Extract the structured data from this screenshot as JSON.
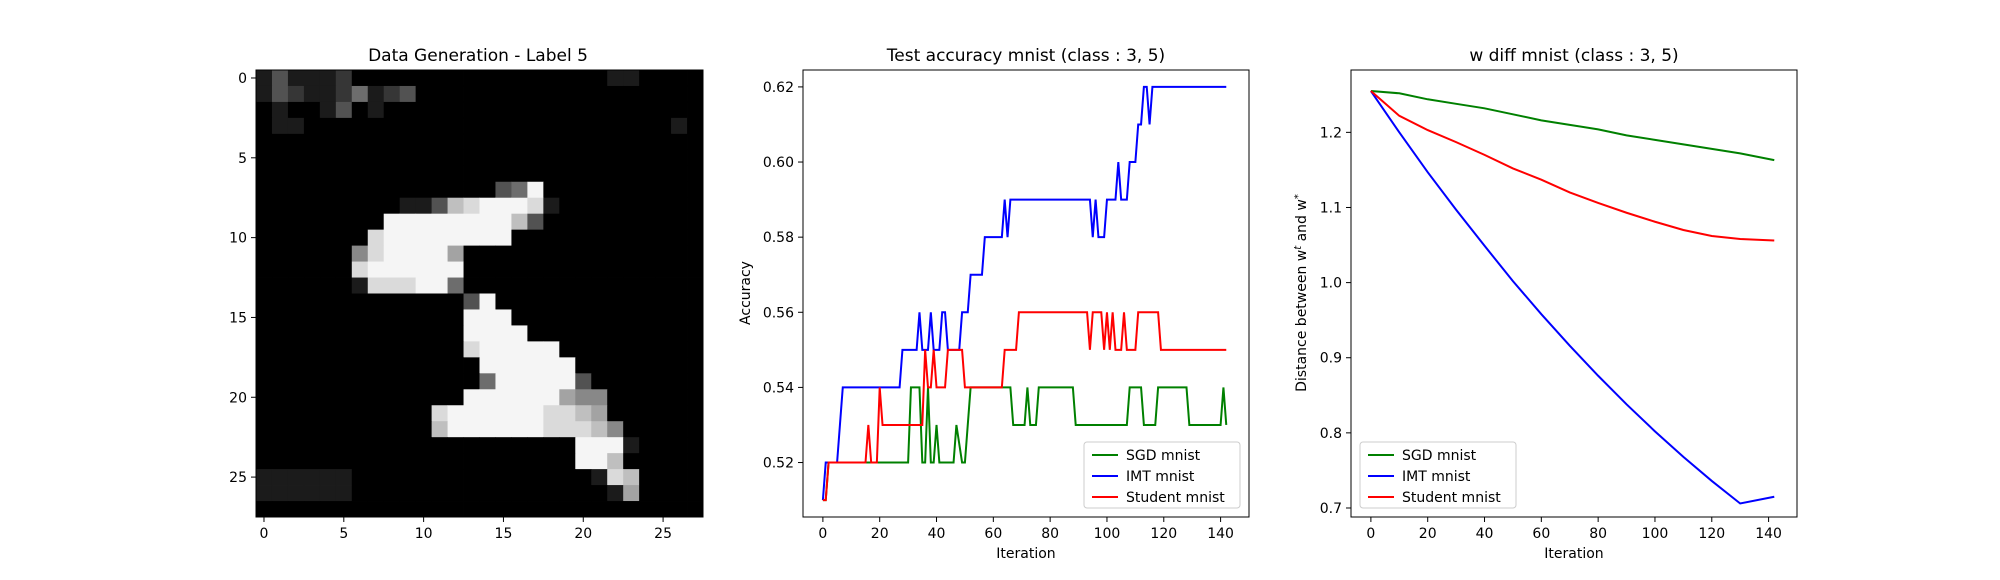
{
  "chart_data": [
    {
      "type": "heatmap",
      "title": "Data Generation - Label 5",
      "colormap": "gray",
      "xlim": [
        -0.5,
        27.5
      ],
      "ylim": [
        27.5,
        -0.5
      ],
      "xticks": [
        "0",
        "5",
        "10",
        "15",
        "20",
        "25"
      ],
      "yticks": [
        "0",
        "5",
        "10",
        "15",
        "20",
        "25"
      ],
      "rows": [
        "1311120000000000000000110000",
        "1321124123000000000000000000",
        "0100130100000000000000000000",
        "0110000000000000000000000010",
        "0000000000000000000000000000",
        "0000000000000000000000000000",
        "0000000000000000000000000000",
        "0000000000000003490000000000",
        "0000000001137899981000000000",
        "0000000099999999730000000000",
        "0000000899999999000000000000",
        "0000005899996000000000000000",
        "0000008999999000000000000000",
        "0000001888994000000000000000",
        "0000000000000390000000000000",
        "0000000000000999000000000000",
        "0000000000000999900000000000",
        "0000000000000899999000000000",
        "0000000000000099999900000000",
        "0000000000000049999930000000",
        "0000000000000999999655000000",
        "0000000000089999998876000000",
        "0000000000079999998887500000",
        "0000000000000000000099910000",
        "0000000000000000000099700000",
        "1111110000000000000001870000",
        "1111110000000000000000160000",
        "0000000000000000000000000000"
      ]
    },
    {
      "type": "line",
      "title": "Test accuracy mnist (class : 3, 5)",
      "xlabel": "Iteration",
      "ylabel": "Accuracy",
      "xlim": [
        -7,
        150
      ],
      "ylim": [
        0.5055,
        0.6245
      ],
      "xticks": [
        0,
        20,
        40,
        60,
        80,
        100,
        120,
        140
      ],
      "yticks": [
        0.52,
        0.54,
        0.56,
        0.58,
        0.6,
        0.62
      ],
      "ytick_labels": [
        "0.52",
        "0.54",
        "0.56",
        "0.58",
        "0.60",
        "0.62"
      ],
      "legend_position": "lower-right",
      "series": [
        {
          "name": "SGD mnist",
          "color": "#008000",
          "points": [
            [
              0,
              0.51
            ],
            [
              1,
              0.51
            ],
            [
              2,
              0.52
            ],
            [
              30,
              0.52
            ],
            [
              31,
              0.54
            ],
            [
              34,
              0.54
            ],
            [
              35,
              0.52
            ],
            [
              36,
              0.52
            ],
            [
              37,
              0.54
            ],
            [
              38,
              0.52
            ],
            [
              39,
              0.52
            ],
            [
              40,
              0.53
            ],
            [
              41,
              0.52
            ],
            [
              46,
              0.52
            ],
            [
              47,
              0.53
            ],
            [
              49,
              0.52
            ],
            [
              50,
              0.52
            ],
            [
              51,
              0.53
            ],
            [
              52,
              0.54
            ],
            [
              66,
              0.54
            ],
            [
              67,
              0.53
            ],
            [
              71,
              0.53
            ],
            [
              72,
              0.54
            ],
            [
              73,
              0.53
            ],
            [
              75,
              0.53
            ],
            [
              76,
              0.54
            ],
            [
              88,
              0.54
            ],
            [
              89,
              0.53
            ],
            [
              107,
              0.53
            ],
            [
              108,
              0.54
            ],
            [
              112,
              0.54
            ],
            [
              113,
              0.53
            ],
            [
              117,
              0.53
            ],
            [
              118,
              0.54
            ],
            [
              128,
              0.54
            ],
            [
              129,
              0.53
            ],
            [
              140,
              0.53
            ],
            [
              141,
              0.54
            ],
            [
              142,
              0.53
            ]
          ]
        },
        {
          "name": "IMT mnist",
          "color": "#0000ff",
          "points": [
            [
              0,
              0.51
            ],
            [
              1,
              0.52
            ],
            [
              5,
              0.52
            ],
            [
              6,
              0.53
            ],
            [
              7,
              0.54
            ],
            [
              27,
              0.54
            ],
            [
              28,
              0.55
            ],
            [
              33,
              0.55
            ],
            [
              34,
              0.56
            ],
            [
              35,
              0.55
            ],
            [
              37,
              0.55
            ],
            [
              38,
              0.56
            ],
            [
              39,
              0.55
            ],
            [
              41,
              0.55
            ],
            [
              42,
              0.56
            ],
            [
              43,
              0.56
            ],
            [
              44,
              0.55
            ],
            [
              48,
              0.55
            ],
            [
              49,
              0.56
            ],
            [
              51,
              0.56
            ],
            [
              52,
              0.57
            ],
            [
              56,
              0.57
            ],
            [
              57,
              0.58
            ],
            [
              63,
              0.58
            ],
            [
              64,
              0.59
            ],
            [
              65,
              0.58
            ],
            [
              66,
              0.59
            ],
            [
              94,
              0.59
            ],
            [
              95,
              0.58
            ],
            [
              96,
              0.59
            ],
            [
              97,
              0.58
            ],
            [
              99,
              0.58
            ],
            [
              100,
              0.59
            ],
            [
              103,
              0.59
            ],
            [
              104,
              0.6
            ],
            [
              105,
              0.59
            ],
            [
              107,
              0.59
            ],
            [
              108,
              0.6
            ],
            [
              110,
              0.6
            ],
            [
              111,
              0.61
            ],
            [
              112,
              0.61
            ],
            [
              113,
              0.62
            ],
            [
              114,
              0.62
            ],
            [
              115,
              0.61
            ],
            [
              116,
              0.62
            ],
            [
              142,
              0.62
            ]
          ]
        },
        {
          "name": "Student mnist",
          "color": "#ff0000",
          "points": [
            [
              0,
              0.51
            ],
            [
              1,
              0.51
            ],
            [
              2,
              0.52
            ],
            [
              15,
              0.52
            ],
            [
              16,
              0.53
            ],
            [
              17,
              0.52
            ],
            [
              19,
              0.52
            ],
            [
              20,
              0.54
            ],
            [
              21,
              0.53
            ],
            [
              35,
              0.53
            ],
            [
              36,
              0.55
            ],
            [
              37,
              0.54
            ],
            [
              38,
              0.54
            ],
            [
              39,
              0.55
            ],
            [
              40,
              0.54
            ],
            [
              43,
              0.54
            ],
            [
              44,
              0.55
            ],
            [
              49,
              0.55
            ],
            [
              50,
              0.54
            ],
            [
              63,
              0.54
            ],
            [
              64,
              0.55
            ],
            [
              68,
              0.55
            ],
            [
              69,
              0.56
            ],
            [
              93,
              0.56
            ],
            [
              94,
              0.55
            ],
            [
              95,
              0.56
            ],
            [
              98,
              0.56
            ],
            [
              99,
              0.55
            ],
            [
              100,
              0.56
            ],
            [
              101,
              0.55
            ],
            [
              102,
              0.56
            ],
            [
              103,
              0.55
            ],
            [
              105,
              0.55
            ],
            [
              106,
              0.56
            ],
            [
              107,
              0.55
            ],
            [
              110,
              0.55
            ],
            [
              111,
              0.56
            ],
            [
              118,
              0.56
            ],
            [
              119,
              0.55
            ],
            [
              142,
              0.55
            ]
          ]
        }
      ]
    },
    {
      "type": "line",
      "title": "w diff mnist (class : 3, 5)",
      "xlabel": "Iteration",
      "ylabel": "Distance between w^t and w^*",
      "xlim": [
        -7,
        150
      ],
      "ylim": [
        0.688,
        1.283
      ],
      "xticks": [
        0,
        20,
        40,
        60,
        80,
        100,
        120,
        140
      ],
      "yticks": [
        0.7,
        0.8,
        0.9,
        1.0,
        1.1,
        1.2
      ],
      "ytick_labels": [
        "0.7",
        "0.8",
        "0.9",
        "1.0",
        "1.1",
        "1.2"
      ],
      "legend_position": "lower-left",
      "series": [
        {
          "name": "SGD mnist",
          "color": "#008000",
          "points": [
            [
              0,
              1.255
            ],
            [
              10,
              1.252
            ],
            [
              20,
              1.244
            ],
            [
              30,
              1.238
            ],
            [
              40,
              1.232
            ],
            [
              50,
              1.224
            ],
            [
              60,
              1.216
            ],
            [
              70,
              1.21
            ],
            [
              80,
              1.204
            ],
            [
              90,
              1.196
            ],
            [
              100,
              1.19
            ],
            [
              110,
              1.184
            ],
            [
              120,
              1.178
            ],
            [
              130,
              1.172
            ],
            [
              142,
              1.163
            ]
          ]
        },
        {
          "name": "IMT mnist",
          "color": "#0000ff",
          "points": [
            [
              0,
              1.255
            ],
            [
              10,
              1.2
            ],
            [
              20,
              1.147
            ],
            [
              30,
              1.097
            ],
            [
              40,
              1.049
            ],
            [
              50,
              1.002
            ],
            [
              60,
              0.958
            ],
            [
              70,
              0.916
            ],
            [
              80,
              0.876
            ],
            [
              90,
              0.838
            ],
            [
              100,
              0.802
            ],
            [
              110,
              0.768
            ],
            [
              120,
              0.736
            ],
            [
              130,
              0.706
            ],
            [
              142,
              0.715
            ]
          ]
        },
        {
          "name": "Student mnist",
          "color": "#ff0000",
          "points": [
            [
              0,
              1.255
            ],
            [
              10,
              1.222
            ],
            [
              20,
              1.203
            ],
            [
              30,
              1.187
            ],
            [
              40,
              1.17
            ],
            [
              50,
              1.152
            ],
            [
              60,
              1.137
            ],
            [
              70,
              1.12
            ],
            [
              80,
              1.106
            ],
            [
              90,
              1.093
            ],
            [
              100,
              1.081
            ],
            [
              110,
              1.07
            ],
            [
              120,
              1.062
            ],
            [
              130,
              1.058
            ],
            [
              142,
              1.056
            ]
          ]
        }
      ]
    }
  ]
}
